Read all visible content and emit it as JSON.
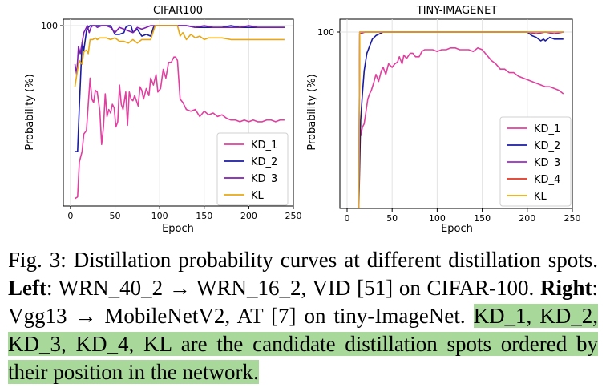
{
  "charts": [
    {
      "type": "line",
      "title": "CIFAR100",
      "xlabel": "Epoch",
      "ylabel": "Probability (%)",
      "xlim": [
        -8,
        250
      ],
      "ylim": [
        0,
        100
      ],
      "xticks": [
        0,
        50,
        100,
        150,
        200,
        250
      ],
      "ytick_label": "100",
      "grid": true,
      "legend_position": "lower-right",
      "series": [
        {
          "name": "KD_1",
          "color": "#e0409f",
          "x": [
            5,
            8,
            10,
            13,
            15,
            18,
            20,
            22,
            24,
            26,
            28,
            30,
            33,
            35,
            37,
            39,
            41,
            43,
            45,
            47,
            49,
            51,
            53,
            55,
            57,
            59,
            62,
            64,
            66,
            68,
            70,
            72,
            74,
            76,
            78,
            80,
            82,
            85,
            88,
            90,
            93,
            96,
            98,
            101,
            104,
            107,
            110,
            113,
            116,
            118,
            120,
            123,
            126,
            130,
            135,
            140,
            145,
            150,
            155,
            160,
            165,
            170,
            175,
            180,
            185,
            190,
            195,
            200,
            205,
            210,
            215,
            220,
            225,
            230,
            235,
            240
          ],
          "y": [
            1,
            2,
            22,
            28,
            38,
            40,
            55,
            70,
            58,
            56,
            63,
            62,
            51,
            32,
            42,
            61,
            48,
            52,
            50,
            55,
            53,
            42,
            45,
            66,
            55,
            52,
            62,
            43,
            62,
            58,
            57,
            60,
            57,
            54,
            65,
            63,
            58,
            64,
            60,
            70,
            66,
            72,
            62,
            64,
            75,
            70,
            79,
            79,
            82,
            82,
            80,
            58,
            56,
            52,
            51,
            52,
            48,
            51,
            49,
            50,
            48,
            49,
            47,
            46,
            46,
            45,
            46,
            45,
            46,
            45,
            45,
            46,
            46,
            45,
            46,
            46
          ]
        },
        {
          "name": "KD_2",
          "color": "#1c1ca0",
          "x": [
            5,
            8,
            10,
            13,
            15,
            18,
            20,
            22,
            25,
            30,
            35,
            40,
            45,
            50,
            55,
            60,
            62,
            65,
            68,
            70,
            75,
            80,
            85,
            90,
            93,
            95,
            100,
            110,
            120,
            130,
            140,
            150,
            160,
            170,
            180,
            190,
            200,
            210,
            220,
            230,
            240
          ],
          "y": [
            28,
            28,
            54,
            90,
            86,
            97,
            99,
            100,
            100,
            100,
            100,
            100,
            100,
            95,
            95,
            96,
            99,
            100,
            100,
            96,
            98,
            94,
            95,
            94,
            99,
            100,
            100,
            100,
            100,
            100,
            99,
            99,
            99,
            99,
            100,
            99,
            99,
            99,
            99,
            99,
            99
          ]
        },
        {
          "name": "KD_3",
          "color": "#7f1fb0",
          "x": [
            5,
            7,
            9,
            11,
            13,
            15,
            17,
            19,
            21,
            23,
            25,
            28,
            30,
            35,
            40,
            45,
            50,
            55,
            60,
            65,
            70,
            75,
            80,
            85,
            90,
            95,
            100,
            110,
            120,
            130,
            140,
            150,
            160,
            170,
            180,
            190,
            200,
            210,
            220,
            230,
            240
          ],
          "y": [
            78,
            72,
            88,
            84,
            90,
            96,
            98,
            100,
            96,
            99,
            100,
            100,
            99,
            100,
            100,
            99,
            96,
            99,
            98,
            97,
            96,
            99,
            98,
            99,
            100,
            100,
            100,
            100,
            100,
            100,
            99,
            100,
            99,
            99,
            99,
            99,
            100,
            99,
            99,
            99,
            99
          ]
        },
        {
          "name": "KL",
          "color": "#e6a817",
          "x": [
            5,
            8,
            10,
            13,
            15,
            18,
            20,
            22,
            25,
            28,
            30,
            33,
            35,
            40,
            45,
            50,
            55,
            60,
            65,
            70,
            75,
            80,
            85,
            90,
            95,
            100,
            110,
            120,
            123,
            126,
            130,
            135,
            140,
            145,
            150,
            155,
            160,
            170,
            180,
            190,
            200,
            210,
            220,
            230,
            240
          ],
          "y": [
            65,
            75,
            80,
            78,
            85,
            86,
            84,
            92,
            92,
            93,
            92,
            93,
            93,
            93,
            92,
            93,
            91,
            91,
            90,
            92,
            90,
            92,
            92,
            92,
            100,
            100,
            100,
            100,
            94,
            96,
            92,
            95,
            93,
            94,
            92,
            93,
            93,
            93,
            92,
            92,
            92,
            92,
            92,
            92,
            92
          ]
        }
      ]
    },
    {
      "type": "line",
      "title": "TINY-IMAGENET",
      "xlabel": "Epoch",
      "ylabel": "Probability (%)",
      "xlim": [
        -8,
        250
      ],
      "ylim": [
        0,
        100
      ],
      "xticks": [
        0,
        50,
        100,
        150,
        200,
        250
      ],
      "ytick_label": "100",
      "grid": true,
      "legend_position": "lower-right",
      "series": [
        {
          "name": "KD_1",
          "color": "#e0409f",
          "x": [
            15,
            17,
            19,
            21,
            23,
            25,
            27,
            30,
            32,
            35,
            38,
            40,
            43,
            46,
            50,
            53,
            56,
            58,
            61,
            63,
            66,
            70,
            73,
            76,
            80,
            83,
            86,
            90,
            95,
            100,
            105,
            110,
            115,
            120,
            125,
            130,
            135,
            140,
            145,
            150,
            155,
            160,
            165,
            170,
            175,
            180,
            185,
            190,
            195,
            200,
            205,
            210,
            215,
            220,
            225,
            230,
            235,
            240
          ],
          "y": [
            41,
            46,
            48,
            55,
            62,
            65,
            67,
            72,
            76,
            72,
            78,
            80,
            76,
            82,
            80,
            82,
            83,
            86,
            82,
            87,
            85,
            88,
            88,
            86,
            86,
            89,
            90,
            90,
            90,
            89,
            90,
            90,
            91,
            91,
            90,
            90,
            90,
            89,
            91,
            90,
            87,
            84,
            82,
            79,
            79,
            77,
            77,
            75,
            74,
            73,
            72,
            71,
            70,
            69,
            69,
            68,
            67,
            65
          ]
        },
        {
          "name": "KD_2",
          "color": "#1c1ca0",
          "x": [
            13,
            15,
            17,
            19,
            22,
            25,
            28,
            32,
            36,
            40,
            50,
            60,
            100,
            150,
            200,
            205,
            210,
            215,
            218,
            220,
            225,
            230,
            235,
            240
          ],
          "y": [
            0,
            50,
            65,
            78,
            88,
            92,
            96,
            98,
            99,
            100,
            100,
            100,
            100,
            100,
            100,
            98,
            97,
            95,
            96,
            95,
            97,
            96,
            96,
            96
          ]
        },
        {
          "name": "KD_3",
          "color": "#9a2bc0",
          "x": [
            13,
            14,
            20,
            50,
            100,
            150,
            200,
            210,
            220,
            230,
            240
          ],
          "y": [
            0,
            99,
            100,
            100,
            100,
            100,
            100,
            99,
            100,
            99,
            100
          ]
        },
        {
          "name": "KD_4",
          "color": "#e03520",
          "x": [
            13,
            14,
            20,
            50,
            100,
            150,
            200,
            220,
            230,
            240
          ],
          "y": [
            0,
            100,
            100,
            100,
            100,
            100,
            100,
            100,
            100,
            100
          ]
        },
        {
          "name": "KL",
          "color": "#e6a817",
          "x": [
            13,
            14,
            20,
            50,
            100,
            150,
            200,
            240
          ],
          "y": [
            0,
            100,
            100,
            100,
            100,
            100,
            100,
            100
          ]
        }
      ]
    }
  ],
  "caption": {
    "label": "Fig. 3:",
    "text1": " Distillation probability curves at different distillation spots. ",
    "left_label": "Left",
    "left_text": ": WRN_40_2 → WRN_16_2, VID [51] on CIFAR-100. ",
    "right_label": "Right",
    "right_text": ": Vgg13 → MobileNetV2, AT [7] on tiny-ImageNet. ",
    "highlight": "KD_1, KD_2, KD_3, KD_4, KL are the candidate distillation spots ordered by their position in the network."
  }
}
